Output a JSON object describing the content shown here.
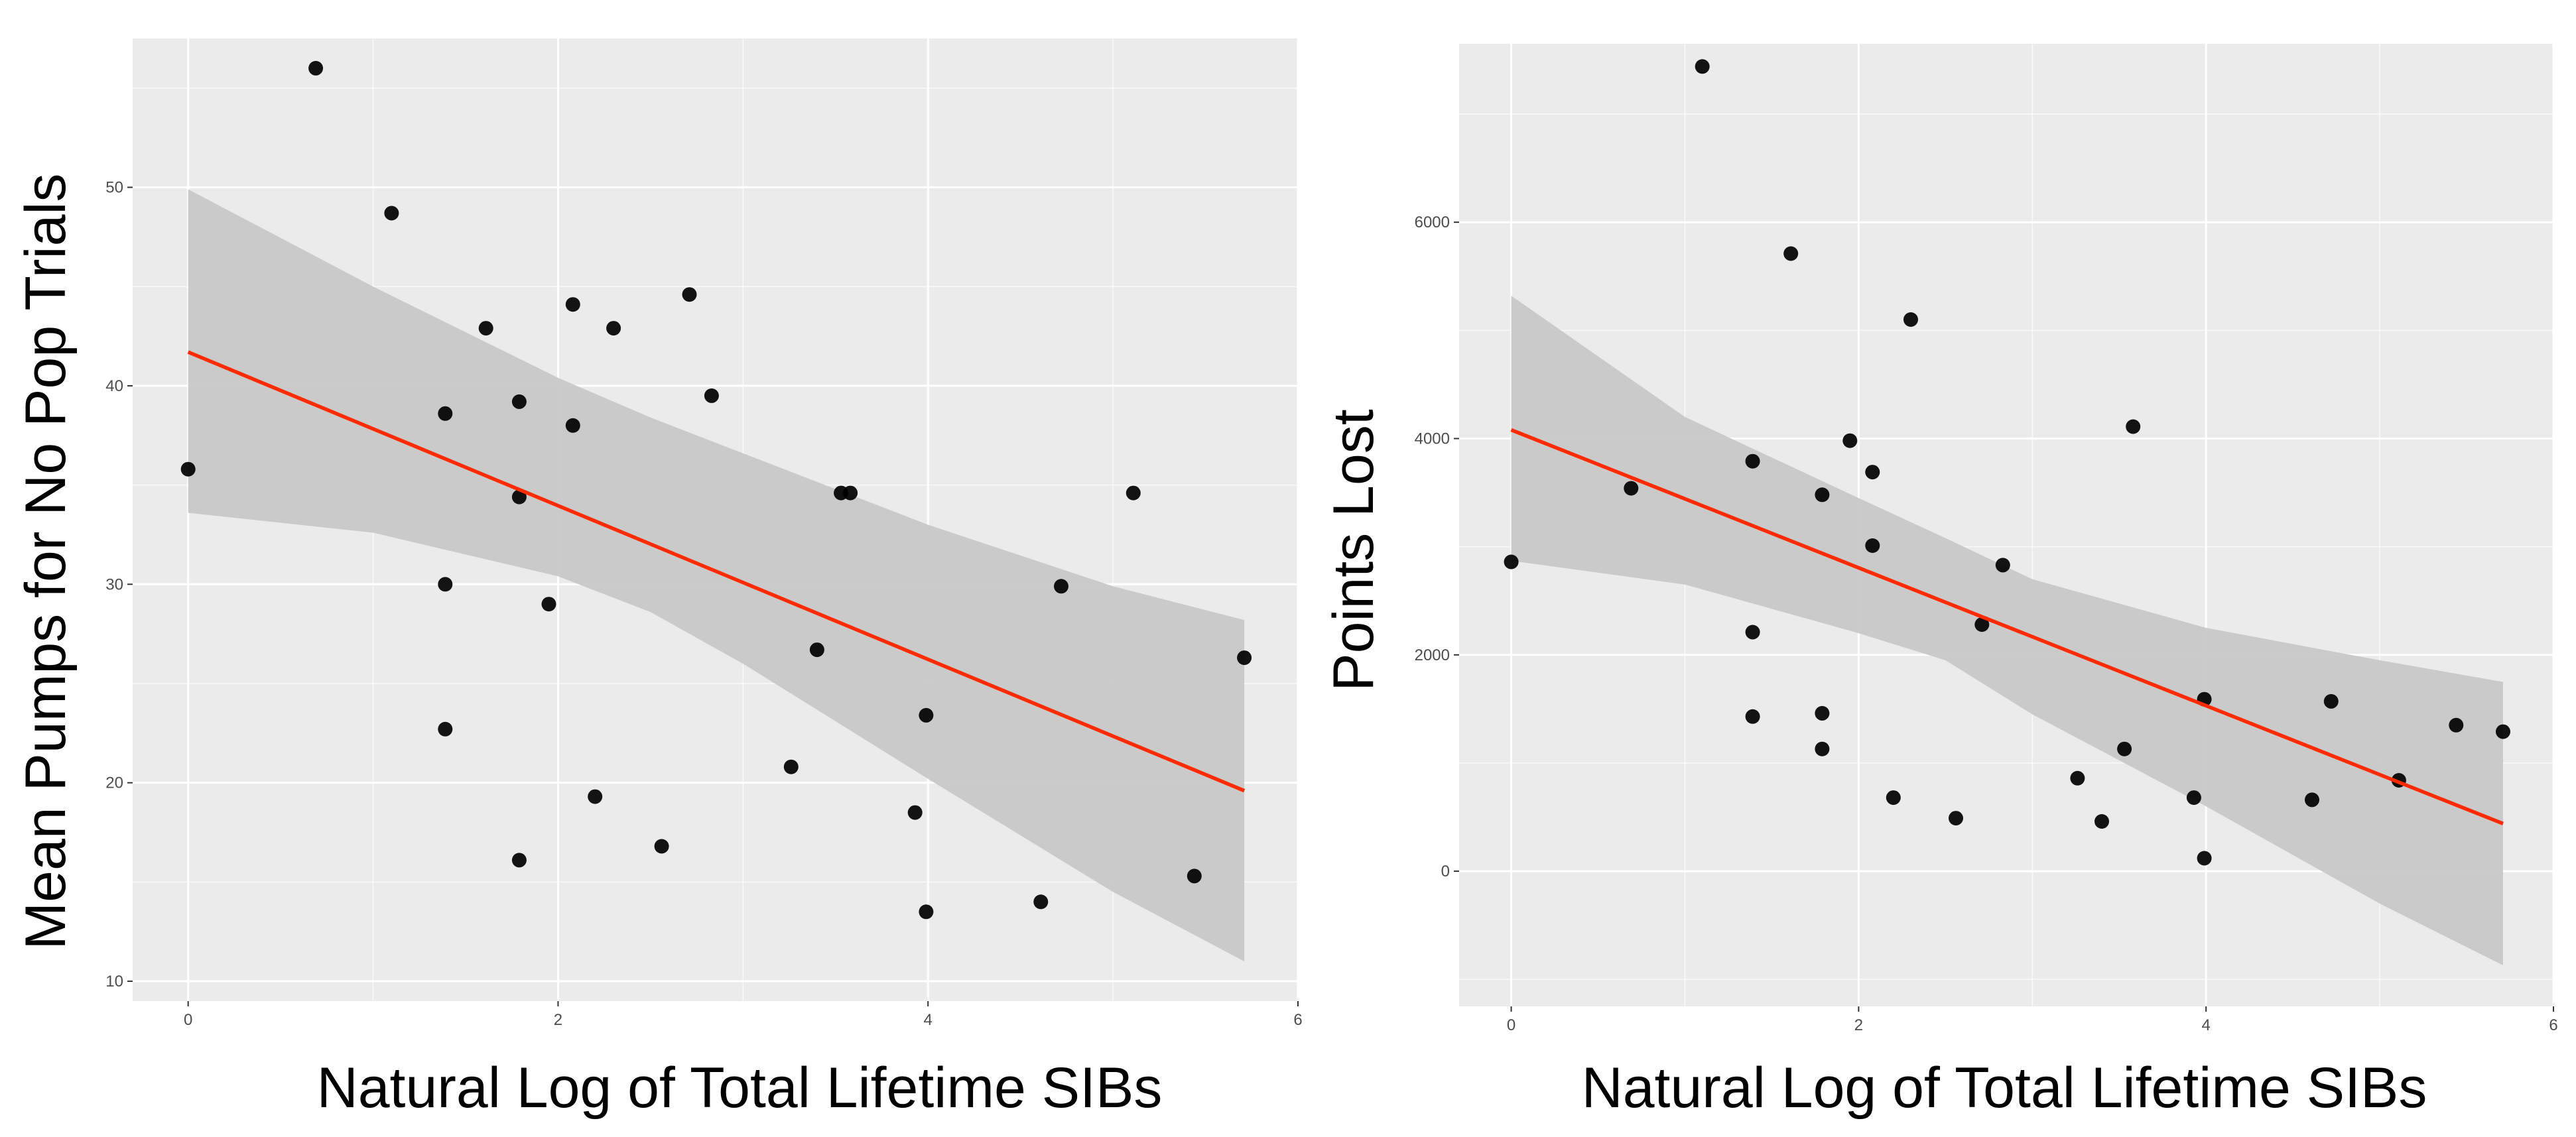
{
  "chart_data": [
    {
      "type": "scatter",
      "xlabel": "Natural Log of Total Lifetime SIBs",
      "ylabel": "Mean Pumps for No Pop Trials",
      "xlim": [
        -0.3,
        6.0
      ],
      "ylim": [
        9.0,
        57.5
      ],
      "xticks": [
        0,
        2,
        4,
        6
      ],
      "yticks": [
        10,
        20,
        30,
        40,
        50
      ],
      "grid": true,
      "points": [
        {
          "x": 0.0,
          "y": 35.8
        },
        {
          "x": 0.69,
          "y": 56.0
        },
        {
          "x": 1.1,
          "y": 48.7
        },
        {
          "x": 1.39,
          "y": 38.6
        },
        {
          "x": 1.39,
          "y": 30.0
        },
        {
          "x": 1.39,
          "y": 22.7
        },
        {
          "x": 1.61,
          "y": 42.9
        },
        {
          "x": 1.79,
          "y": 39.2
        },
        {
          "x": 1.79,
          "y": 34.4
        },
        {
          "x": 1.79,
          "y": 16.1
        },
        {
          "x": 1.95,
          "y": 29.0
        },
        {
          "x": 2.08,
          "y": 44.1
        },
        {
          "x": 2.08,
          "y": 38.0
        },
        {
          "x": 2.2,
          "y": 19.3
        },
        {
          "x": 2.3,
          "y": 42.9
        },
        {
          "x": 2.56,
          "y": 16.8
        },
        {
          "x": 2.71,
          "y": 44.6
        },
        {
          "x": 2.83,
          "y": 39.5
        },
        {
          "x": 3.26,
          "y": 20.8
        },
        {
          "x": 3.4,
          "y": 26.7
        },
        {
          "x": 3.53,
          "y": 34.6
        },
        {
          "x": 3.58,
          "y": 34.6
        },
        {
          "x": 3.93,
          "y": 18.5
        },
        {
          "x": 3.99,
          "y": 23.4
        },
        {
          "x": 3.99,
          "y": 13.5
        },
        {
          "x": 4.61,
          "y": 14.0
        },
        {
          "x": 4.72,
          "y": 29.9
        },
        {
          "x": 5.11,
          "y": 34.6
        },
        {
          "x": 5.44,
          "y": 15.3
        },
        {
          "x": 5.71,
          "y": 26.3
        }
      ],
      "fit_line": {
        "x": [
          0.0,
          5.71
        ],
        "y": [
          41.7,
          19.6
        ],
        "color": "#ff2a00"
      },
      "confidence_band": [
        {
          "x": 0.0,
          "lower": 33.6,
          "upper": 49.9
        },
        {
          "x": 1.0,
          "lower": 32.6,
          "upper": 45.0
        },
        {
          "x": 2.0,
          "lower": 30.4,
          "upper": 40.4
        },
        {
          "x": 2.5,
          "lower": 28.6,
          "upper": 38.4
        },
        {
          "x": 3.0,
          "lower": 26.0,
          "upper": 36.6
        },
        {
          "x": 4.0,
          "lower": 20.2,
          "upper": 33.0
        },
        {
          "x": 5.0,
          "lower": 14.5,
          "upper": 29.9
        },
        {
          "x": 5.71,
          "lower": 11.0,
          "upper": 28.2
        }
      ]
    },
    {
      "type": "scatter",
      "xlabel": "Natural Log of Total Lifetime SIBs",
      "ylabel": "Points Lost",
      "xlim": [
        -0.3,
        6.0
      ],
      "ylim": [
        -1250,
        7650
      ],
      "xticks": [
        0,
        2,
        4,
        6
      ],
      "yticks": [
        0,
        2000,
        4000,
        6000
      ],
      "grid": true,
      "points": [
        {
          "x": 0.0,
          "y": 2860
        },
        {
          "x": 0.69,
          "y": 3540
        },
        {
          "x": 1.1,
          "y": 7440
        },
        {
          "x": 1.39,
          "y": 3790
        },
        {
          "x": 1.39,
          "y": 2210
        },
        {
          "x": 1.39,
          "y": 1430
        },
        {
          "x": 1.61,
          "y": 5710
        },
        {
          "x": 1.79,
          "y": 3480
        },
        {
          "x": 1.79,
          "y": 1460
        },
        {
          "x": 1.79,
          "y": 1130
        },
        {
          "x": 1.95,
          "y": 3980
        },
        {
          "x": 2.08,
          "y": 3690
        },
        {
          "x": 2.08,
          "y": 3010
        },
        {
          "x": 2.2,
          "y": 680
        },
        {
          "x": 2.3,
          "y": 5100
        },
        {
          "x": 2.56,
          "y": 490
        },
        {
          "x": 2.71,
          "y": 2280
        },
        {
          "x": 2.83,
          "y": 2830
        },
        {
          "x": 3.26,
          "y": 860
        },
        {
          "x": 3.4,
          "y": 460
        },
        {
          "x": 3.53,
          "y": 1130
        },
        {
          "x": 3.58,
          "y": 4110
        },
        {
          "x": 3.93,
          "y": 680
        },
        {
          "x": 3.99,
          "y": 1590
        },
        {
          "x": 3.99,
          "y": 120
        },
        {
          "x": 4.61,
          "y": 660
        },
        {
          "x": 4.72,
          "y": 1570
        },
        {
          "x": 5.11,
          "y": 840
        },
        {
          "x": 5.44,
          "y": 1350
        },
        {
          "x": 5.71,
          "y": 1290
        }
      ],
      "fit_line": {
        "x": [
          0.0,
          5.71
        ],
        "y": [
          4080,
          440
        ],
        "color": "#ff2a00"
      },
      "confidence_band": [
        {
          "x": 0.0,
          "lower": 2870,
          "upper": 5320
        },
        {
          "x": 1.0,
          "lower": 2650,
          "upper": 4200
        },
        {
          "x": 2.0,
          "lower": 2200,
          "upper": 3450
        },
        {
          "x": 2.5,
          "lower": 1950,
          "upper": 3080
        },
        {
          "x": 3.0,
          "lower": 1450,
          "upper": 2700
        },
        {
          "x": 4.0,
          "lower": 600,
          "upper": 2250
        },
        {
          "x": 5.0,
          "lower": -300,
          "upper": 1950
        },
        {
          "x": 5.71,
          "lower": -870,
          "upper": 1750
        }
      ]
    }
  ],
  "colors": {
    "panel_background": "#ebebeb",
    "grid_major": "#ffffff",
    "confidence_band": "#c8c8c8",
    "points": "#000000",
    "fit_line": "#ff2a00"
  }
}
